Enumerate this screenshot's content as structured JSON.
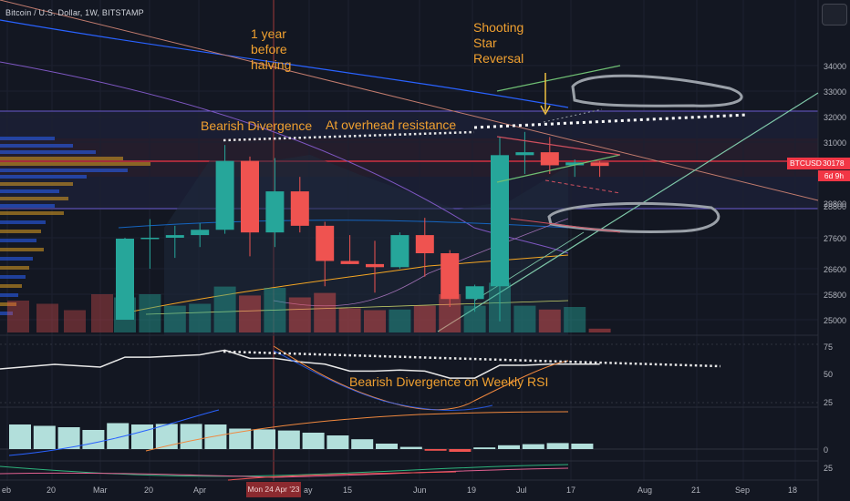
{
  "header": {
    "symbol_line": "Bitcoin / U.S. Dollar, 1W, BITSTAMP"
  },
  "annotations": {
    "halving": "1 year\nbefore\nhalving",
    "shooting_star": "Shooting\nStar\nReversal",
    "bearish_divergence": "Bearish Divergence",
    "overhead_resistance": "At overhead resistance",
    "rsi_divergence": "Bearish Divergence on Weekly RSI"
  },
  "price_tag": {
    "symbol": "BTCUSD",
    "value": "30178",
    "countdown": "6d 9h"
  },
  "crosshair_date": "Mon 24 Apr '23",
  "colors": {
    "up": "#26a69a",
    "down": "#ef5350",
    "accent": "#f0a030",
    "background": "#131722"
  },
  "chart_data": {
    "type": "candlestick",
    "title": "Bitcoin / U.S. Dollar, 1W, BITSTAMP",
    "interval": "1W",
    "y_axis_ticks": [
      "34000",
      "33000",
      "32000",
      "31000",
      "29800",
      "28800",
      "27600",
      "26600",
      "25800",
      "25000"
    ],
    "rsi_axis_ticks": [
      "75",
      "50",
      "25"
    ],
    "macd_axis_ticks": [
      "0"
    ],
    "stoch_axis_ticks": [
      "25"
    ],
    "x_axis_ticks": [
      "eb",
      "20",
      "Mar",
      "20",
      "Apr",
      "Mon 24 Apr '23",
      "ay",
      "15",
      "Jun",
      "19",
      "Jul",
      "17",
      "Aug",
      "21",
      "Sep",
      "18"
    ],
    "candles": [
      {
        "o": 25000,
        "h": 27600,
        "l": 25000,
        "c": 27570
      },
      {
        "o": 27570,
        "h": 28300,
        "l": 26600,
        "c": 27600
      },
      {
        "o": 27600,
        "h": 28050,
        "l": 26950,
        "c": 27700
      },
      {
        "o": 27700,
        "h": 28150,
        "l": 27300,
        "c": 27900
      },
      {
        "o": 27900,
        "h": 30900,
        "l": 27750,
        "c": 30350
      },
      {
        "o": 30350,
        "h": 30500,
        "l": 27000,
        "c": 27800
      },
      {
        "o": 27800,
        "h": 30450,
        "l": 27300,
        "c": 29300
      },
      {
        "o": 29300,
        "h": 29800,
        "l": 27800,
        "c": 28050
      },
      {
        "o": 28050,
        "h": 28200,
        "l": 26050,
        "c": 26850
      },
      {
        "o": 26850,
        "h": 27700,
        "l": 26750,
        "c": 26750
      },
      {
        "o": 26750,
        "h": 27500,
        "l": 25850,
        "c": 26650
      },
      {
        "o": 26650,
        "h": 27800,
        "l": 26600,
        "c": 27700
      },
      {
        "o": 27700,
        "h": 28350,
        "l": 26350,
        "c": 27100
      },
      {
        "o": 27100,
        "h": 27200,
        "l": 25400,
        "c": 25650
      },
      {
        "o": 25650,
        "h": 26100,
        "l": 25250,
        "c": 26050
      },
      {
        "o": 26050,
        "h": 31200,
        "l": 24950,
        "c": 30550
      },
      {
        "o": 30550,
        "h": 31400,
        "l": 29900,
        "c": 30650
      },
      {
        "o": 30650,
        "h": 31200,
        "l": 29900,
        "c": 30200
      },
      {
        "o": 30200,
        "h": 30400,
        "l": 29800,
        "c": 30300
      },
      {
        "o": 30300,
        "h": 30350,
        "l": 29800,
        "c": 30178
      }
    ],
    "volume": [
      0.55,
      0.6,
      0.42,
      0.45,
      0.72,
      0.58,
      0.7,
      0.55,
      0.62,
      0.38,
      0.35,
      0.36,
      0.42,
      0.6,
      0.42,
      0.78,
      0.42,
      0.36,
      0.4,
      0.06
    ],
    "rsi": [
      64,
      64,
      65,
      66,
      70,
      63,
      63,
      60,
      58,
      52,
      52,
      53,
      52,
      46,
      46,
      57,
      57,
      58,
      58,
      58
    ],
    "macd_hist": [
      0.95,
      0.9,
      0.92,
      0.92,
      0.9,
      0.75,
      0.72,
      0.68,
      0.6,
      0.5,
      0.36,
      0.2,
      0.08,
      -0.06,
      -0.1,
      0.06,
      0.14,
      0.18,
      0.22,
      0.2
    ]
  }
}
